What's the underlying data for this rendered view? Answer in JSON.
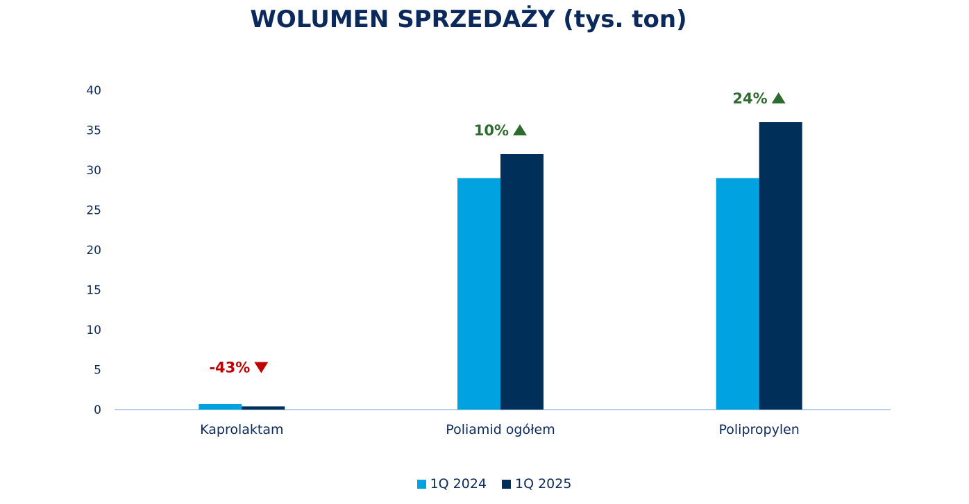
{
  "chart_data": {
    "type": "bar",
    "title": "WOLUMEN SPRZEDAŻY (tys. ton)",
    "categories": [
      "Kaprolaktam",
      "Poliamid ogółem",
      "Polipropylen"
    ],
    "series": [
      {
        "name": "1Q 2024",
        "color": "#00a3e0",
        "values": [
          0.7,
          29,
          29
        ]
      },
      {
        "name": "1Q 2025",
        "color": "#002f5a",
        "values": [
          0.4,
          32,
          36
        ]
      }
    ],
    "changes": [
      {
        "label": "-43%",
        "direction": "down",
        "color": "#c00000"
      },
      {
        "label": "10%",
        "direction": "up",
        "color": "#2e6b30"
      },
      {
        "label": "24%",
        "direction": "up",
        "color": "#2e6b30"
      }
    ],
    "ylim": [
      0,
      40
    ],
    "yticks": [
      0,
      5,
      10,
      15,
      20,
      25,
      30,
      35,
      40
    ],
    "grid": false,
    "legend": "bottom"
  }
}
